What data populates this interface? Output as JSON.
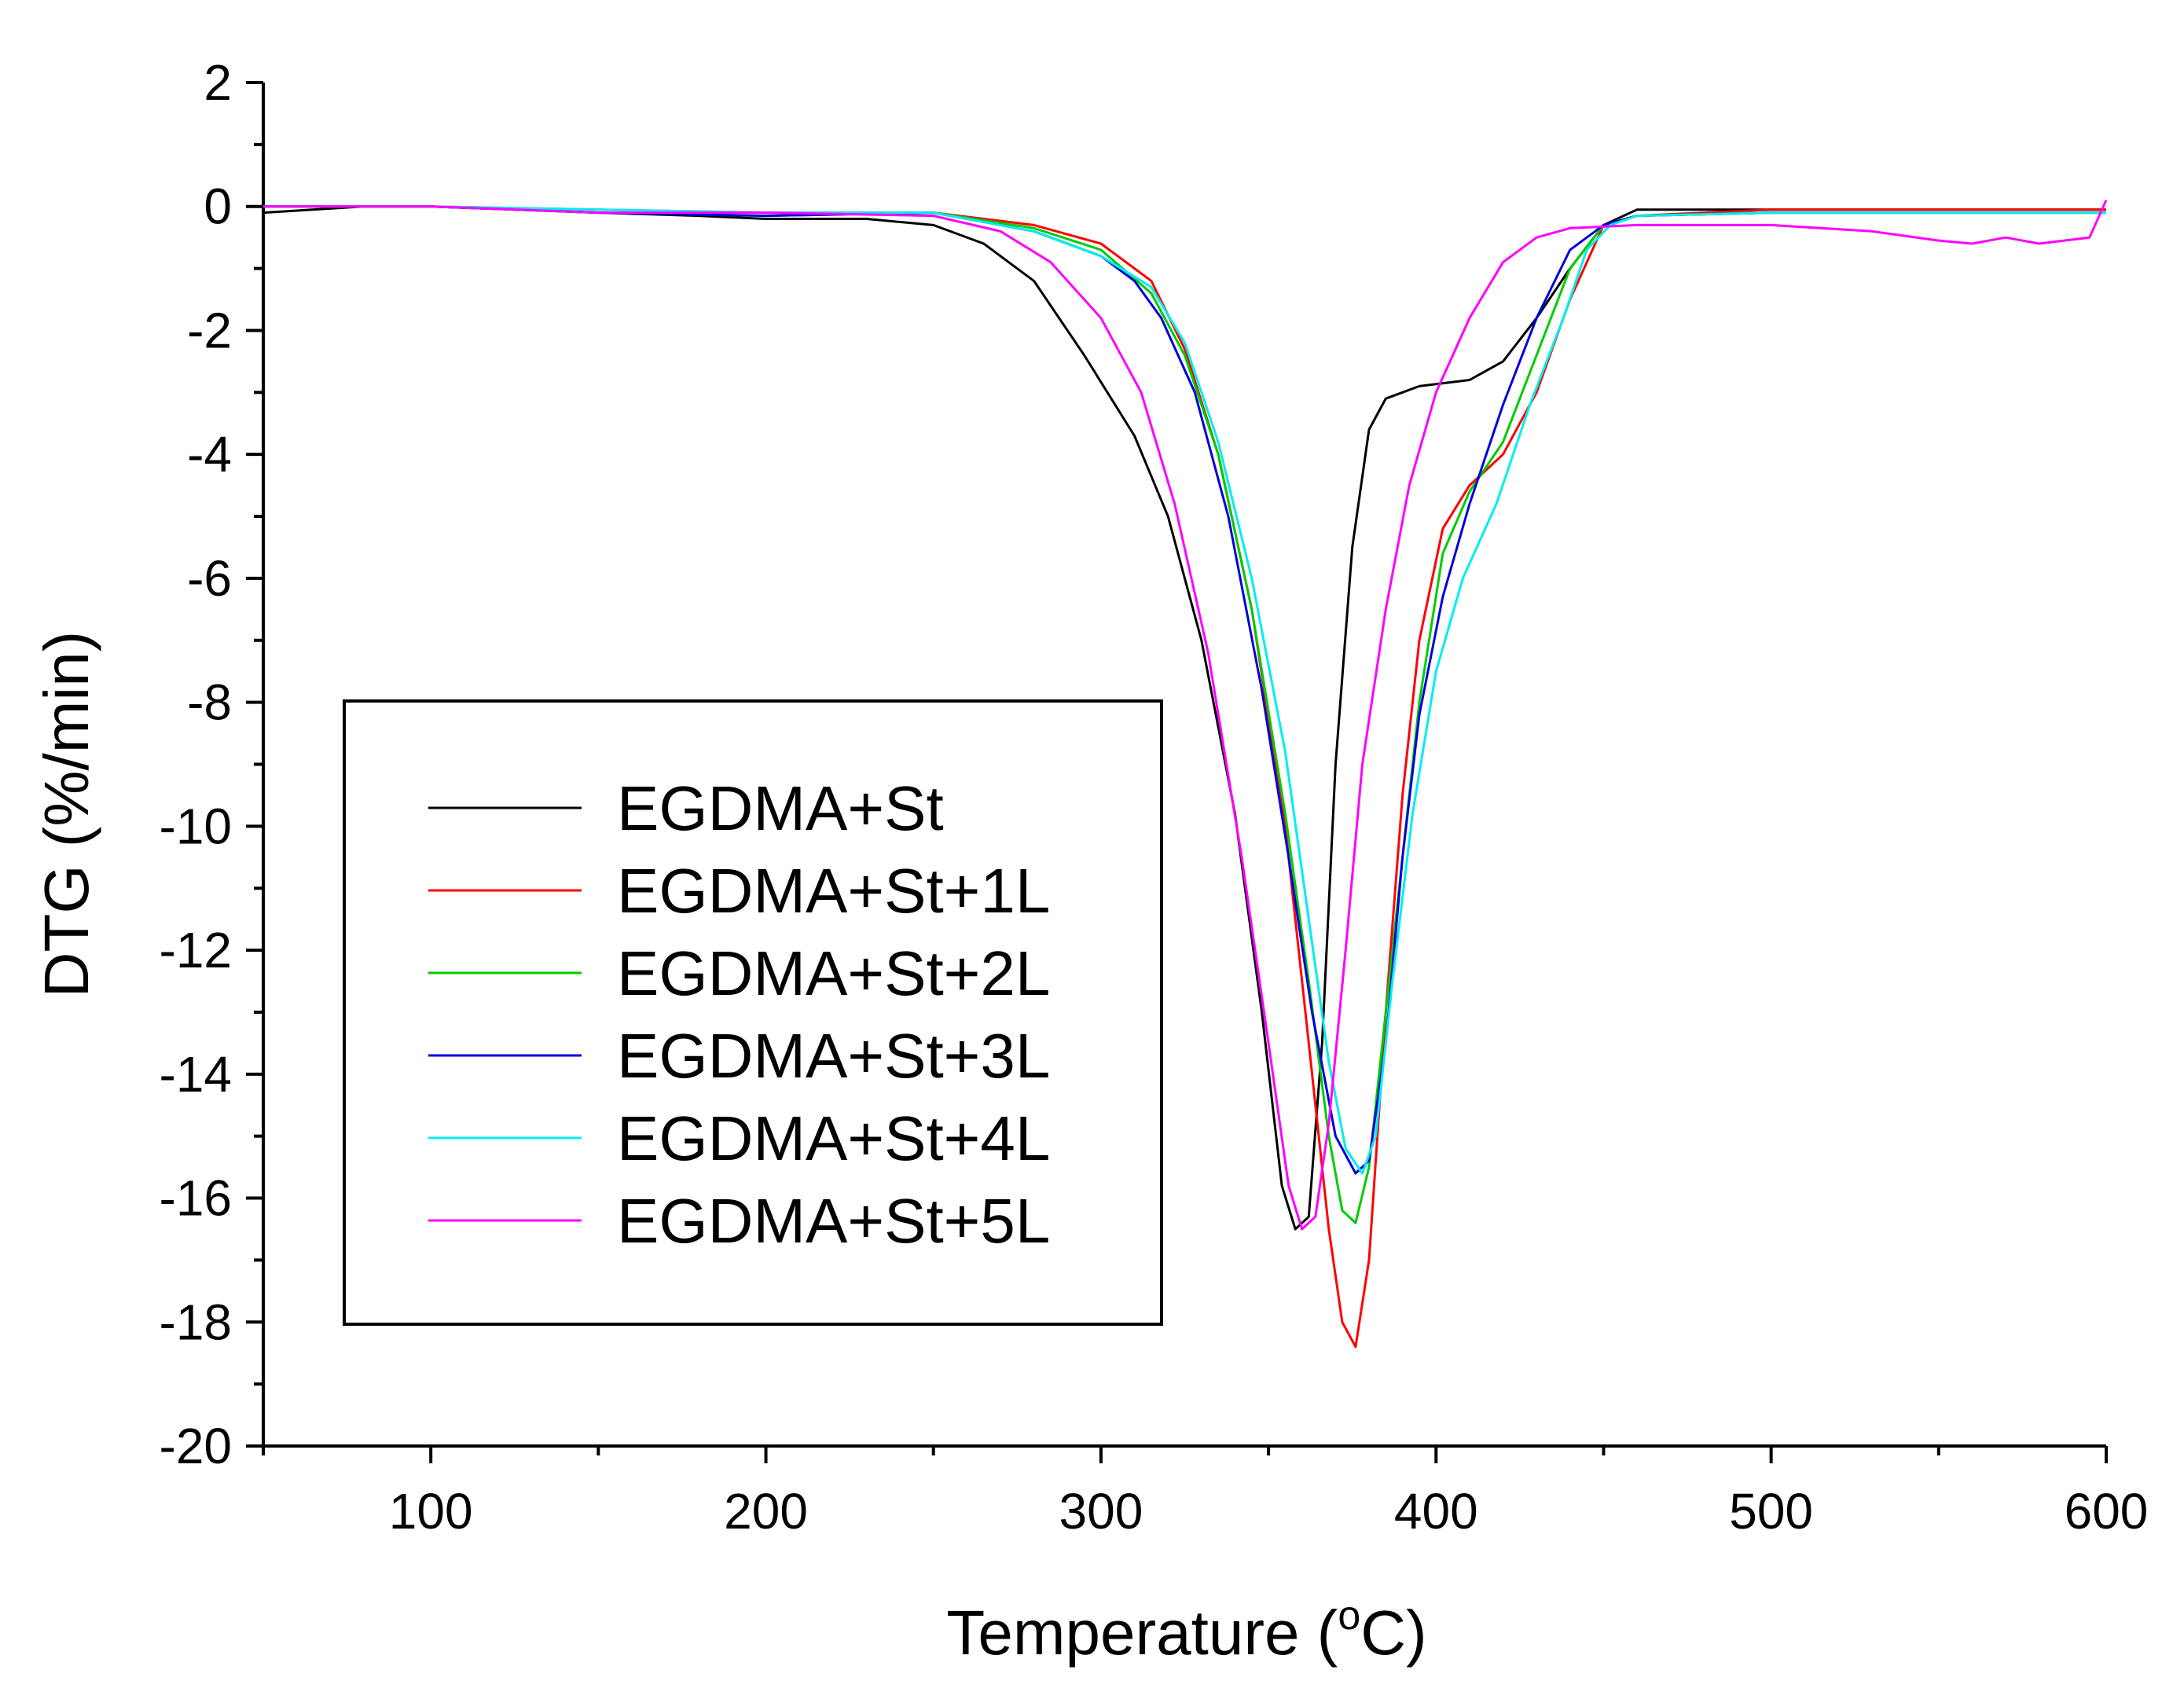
{
  "chart_data": {
    "type": "line",
    "title": "",
    "xlabel": "Temperature (",
    "xlabel_sup": "o",
    "xlabel_end": "C)",
    "ylabel": "DTG (%/min)",
    "xlim": [
      50,
      600
    ],
    "ylim": [
      -20,
      2
    ],
    "x_ticks": [
      100,
      200,
      300,
      400,
      500,
      600
    ],
    "y_ticks": [
      2,
      0,
      -2,
      -4,
      -6,
      -8,
      -10,
      -12,
      -14,
      -16,
      -18,
      -20
    ],
    "x_ticks_labels": [
      "100",
      "200",
      "300",
      "400",
      "500",
      "600"
    ],
    "y_ticks_labels": [
      "2",
      "0",
      "-2",
      "-4",
      "-6",
      "-8",
      "-10",
      "-12",
      "-14",
      "-16",
      "-18",
      "-20"
    ],
    "grid": false,
    "legend_position": "left-center",
    "series": [
      {
        "name": "EGDMA+St",
        "color": "#000000",
        "points": [
          [
            50,
            -0.1
          ],
          [
            80,
            0
          ],
          [
            100,
            0
          ],
          [
            150,
            -0.1
          ],
          [
            180,
            -0.15
          ],
          [
            200,
            -0.2
          ],
          [
            230,
            -0.2
          ],
          [
            250,
            -0.3
          ],
          [
            265,
            -0.6
          ],
          [
            280,
            -1.2
          ],
          [
            295,
            -2.4
          ],
          [
            310,
            -3.7
          ],
          [
            320,
            -5.0
          ],
          [
            330,
            -7.0
          ],
          [
            340,
            -9.8
          ],
          [
            348,
            -13.0
          ],
          [
            354,
            -15.8
          ],
          [
            358,
            -16.5
          ],
          [
            362,
            -16.3
          ],
          [
            366,
            -13.5
          ],
          [
            370,
            -9.0
          ],
          [
            375,
            -5.5
          ],
          [
            380,
            -3.6
          ],
          [
            385,
            -3.1
          ],
          [
            395,
            -2.9
          ],
          [
            410,
            -2.8
          ],
          [
            420,
            -2.5
          ],
          [
            430,
            -1.8
          ],
          [
            440,
            -1.0
          ],
          [
            450,
            -0.3
          ],
          [
            460,
            -0.05
          ],
          [
            480,
            -0.05
          ],
          [
            500,
            -0.05
          ],
          [
            550,
            -0.05
          ],
          [
            600,
            -0.05
          ]
        ]
      },
      {
        "name": "EGDMA+St+1L",
        "color": "#ff0000",
        "points": [
          [
            50,
            0
          ],
          [
            100,
            0
          ],
          [
            150,
            -0.05
          ],
          [
            200,
            -0.1
          ],
          [
            250,
            -0.1
          ],
          [
            280,
            -0.3
          ],
          [
            300,
            -0.6
          ],
          [
            315,
            -1.2
          ],
          [
            325,
            -2.3
          ],
          [
            335,
            -4.0
          ],
          [
            345,
            -6.5
          ],
          [
            355,
            -10.0
          ],
          [
            362,
            -13.5
          ],
          [
            368,
            -16.5
          ],
          [
            372,
            -18.0
          ],
          [
            376,
            -18.4
          ],
          [
            380,
            -17.0
          ],
          [
            385,
            -13.0
          ],
          [
            390,
            -9.5
          ],
          [
            395,
            -7.0
          ],
          [
            402,
            -5.2
          ],
          [
            410,
            -4.5
          ],
          [
            420,
            -4.0
          ],
          [
            430,
            -3.0
          ],
          [
            440,
            -1.5
          ],
          [
            450,
            -0.3
          ],
          [
            460,
            -0.15
          ],
          [
            500,
            -0.05
          ],
          [
            550,
            -0.05
          ],
          [
            600,
            -0.05
          ]
        ]
      },
      {
        "name": "EGDMA+St+2L",
        "color": "#00cc00",
        "points": [
          [
            50,
            0
          ],
          [
            100,
            0
          ],
          [
            150,
            -0.1
          ],
          [
            200,
            -0.15
          ],
          [
            250,
            -0.1
          ],
          [
            280,
            -0.35
          ],
          [
            300,
            -0.7
          ],
          [
            315,
            -1.4
          ],
          [
            325,
            -2.4
          ],
          [
            335,
            -4.0
          ],
          [
            345,
            -6.5
          ],
          [
            355,
            -9.8
          ],
          [
            362,
            -12.5
          ],
          [
            368,
            -15.0
          ],
          [
            372,
            -16.2
          ],
          [
            376,
            -16.4
          ],
          [
            380,
            -15.5
          ],
          [
            385,
            -13.0
          ],
          [
            390,
            -10.5
          ],
          [
            395,
            -8.0
          ],
          [
            402,
            -5.6
          ],
          [
            410,
            -4.6
          ],
          [
            420,
            -3.8
          ],
          [
            430,
            -2.4
          ],
          [
            440,
            -1.0
          ],
          [
            450,
            -0.3
          ],
          [
            460,
            -0.15
          ],
          [
            500,
            -0.1
          ],
          [
            550,
            -0.1
          ],
          [
            600,
            -0.1
          ]
        ]
      },
      {
        "name": "EGDMA+St+3L",
        "color": "#0000dd",
        "points": [
          [
            50,
            0
          ],
          [
            100,
            0
          ],
          [
            150,
            -0.1
          ],
          [
            200,
            -0.15
          ],
          [
            250,
            -0.1
          ],
          [
            280,
            -0.4
          ],
          [
            300,
            -0.8
          ],
          [
            310,
            -1.2
          ],
          [
            318,
            -1.8
          ],
          [
            328,
            -3.0
          ],
          [
            338,
            -5.0
          ],
          [
            348,
            -7.8
          ],
          [
            356,
            -10.5
          ],
          [
            363,
            -13.0
          ],
          [
            370,
            -15.0
          ],
          [
            376,
            -15.6
          ],
          [
            380,
            -15.4
          ],
          [
            385,
            -13.5
          ],
          [
            390,
            -10.5
          ],
          [
            395,
            -8.2
          ],
          [
            402,
            -6.3
          ],
          [
            410,
            -4.8
          ],
          [
            420,
            -3.2
          ],
          [
            430,
            -1.8
          ],
          [
            440,
            -0.7
          ],
          [
            450,
            -0.3
          ],
          [
            460,
            -0.15
          ],
          [
            500,
            -0.1
          ],
          [
            550,
            -0.1
          ],
          [
            600,
            -0.1
          ]
        ]
      },
      {
        "name": "EGDMA+St+4L",
        "color": "#00eeee",
        "points": [
          [
            50,
            0
          ],
          [
            100,
            0
          ],
          [
            150,
            -0.05
          ],
          [
            200,
            -0.1
          ],
          [
            250,
            -0.1
          ],
          [
            280,
            -0.4
          ],
          [
            300,
            -0.8
          ],
          [
            315,
            -1.3
          ],
          [
            325,
            -2.2
          ],
          [
            335,
            -3.8
          ],
          [
            345,
            -6.0
          ],
          [
            355,
            -8.8
          ],
          [
            362,
            -11.5
          ],
          [
            368,
            -13.8
          ],
          [
            373,
            -15.2
          ],
          [
            378,
            -15.6
          ],
          [
            382,
            -15.0
          ],
          [
            387,
            -12.5
          ],
          [
            393,
            -9.8
          ],
          [
            400,
            -7.5
          ],
          [
            408,
            -6.0
          ],
          [
            418,
            -4.8
          ],
          [
            428,
            -3.2
          ],
          [
            438,
            -1.8
          ],
          [
            445,
            -0.7
          ],
          [
            452,
            -0.3
          ],
          [
            460,
            -0.15
          ],
          [
            500,
            -0.1
          ],
          [
            550,
            -0.1
          ],
          [
            600,
            -0.1
          ]
        ]
      },
      {
        "name": "EGDMA+St+5L",
        "color": "#ff00ff",
        "points": [
          [
            50,
            0
          ],
          [
            100,
            0
          ],
          [
            150,
            -0.1
          ],
          [
            200,
            -0.1
          ],
          [
            250,
            -0.15
          ],
          [
            270,
            -0.4
          ],
          [
            285,
            -0.9
          ],
          [
            300,
            -1.8
          ],
          [
            312,
            -3.0
          ],
          [
            322,
            -4.8
          ],
          [
            332,
            -7.2
          ],
          [
            342,
            -10.5
          ],
          [
            350,
            -13.5
          ],
          [
            356,
            -15.8
          ],
          [
            360,
            -16.5
          ],
          [
            364,
            -16.3
          ],
          [
            368,
            -14.8
          ],
          [
            373,
            -12.0
          ],
          [
            378,
            -9.0
          ],
          [
            385,
            -6.5
          ],
          [
            392,
            -4.5
          ],
          [
            400,
            -3.0
          ],
          [
            410,
            -1.8
          ],
          [
            420,
            -0.9
          ],
          [
            430,
            -0.5
          ],
          [
            440,
            -0.35
          ],
          [
            460,
            -0.3
          ],
          [
            500,
            -0.3
          ],
          [
            530,
            -0.4
          ],
          [
            550,
            -0.55
          ],
          [
            560,
            -0.6
          ],
          [
            570,
            -0.5
          ],
          [
            580,
            -0.6
          ],
          [
            595,
            -0.5
          ],
          [
            600,
            0.1
          ]
        ]
      }
    ]
  }
}
